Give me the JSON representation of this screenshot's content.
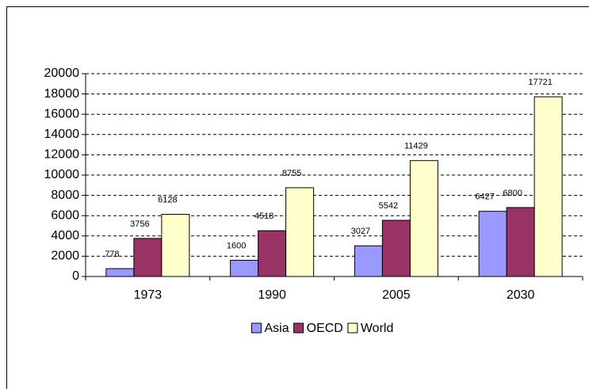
{
  "chart_data": {
    "type": "bar",
    "categories": [
      "1973",
      "1990",
      "2005",
      "2030"
    ],
    "series": [
      {
        "name": "Asia",
        "color": "#9999ff",
        "values": [
          778,
          1600,
          3027,
          6427
        ]
      },
      {
        "name": "OECD",
        "color": "#993366",
        "values": [
          3756,
          4518,
          5542,
          6800
        ]
      },
      {
        "name": "World",
        "color": "#ffffcc",
        "values": [
          6128,
          8755,
          11429,
          17721
        ]
      }
    ],
    "ylim": [
      0,
      20000
    ],
    "yticks": [
      0,
      2000,
      4000,
      6000,
      8000,
      10000,
      12000,
      14000,
      16000,
      18000,
      20000
    ],
    "grid": true,
    "legend": "bottom"
  }
}
